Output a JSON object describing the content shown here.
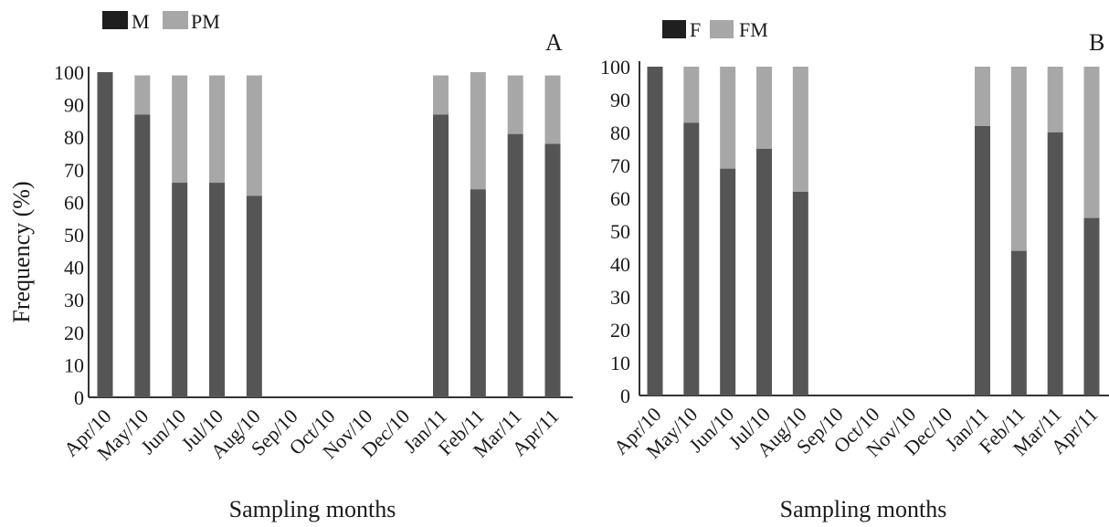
{
  "colors": {
    "primary": "#555555",
    "secondary": "#a7a7a8",
    "legend_dark": "#1f1f1f",
    "legend_light": "#a7a7a8",
    "axis": "#333333"
  },
  "chart_data": [
    {
      "type": "bar",
      "stacked": true,
      "panel": "A",
      "legend": [
        "M",
        "PM"
      ],
      "legend_placement": "top-left",
      "categories": [
        "Apr/10",
        "May/10",
        "Jun/10",
        "Jul/10",
        "Aug/10",
        "Sep/10",
        "Oct/10",
        "Nov/10",
        "Dec/10",
        "Jan/11",
        "Feb/11",
        "Mar/11",
        "Apr/11"
      ],
      "series": [
        {
          "name": "M",
          "values": [
            100,
            87,
            66,
            66,
            62,
            0,
            0,
            0,
            0,
            87,
            64,
            81,
            78
          ]
        },
        {
          "name": "PM",
          "values": [
            0,
            12,
            33,
            33,
            37,
            0,
            0,
            0,
            0,
            12,
            36,
            18,
            21
          ]
        }
      ],
      "ylabel": "Frequency (%)",
      "xlabel": "Sampling months",
      "yticks": [
        0,
        10,
        20,
        30,
        40,
        50,
        60,
        70,
        80,
        90,
        100
      ],
      "ylim": [
        0,
        100
      ],
      "grid": false
    },
    {
      "type": "bar",
      "stacked": true,
      "panel": "B",
      "legend": [
        "F",
        "FM"
      ],
      "legend_placement": "top-left",
      "categories": [
        "Apr/10",
        "May/10",
        "Jun/10",
        "Jul/10",
        "Aug/10",
        "Sep/10",
        "Oct/10",
        "Nov/10",
        "Dec/10",
        "Jan/11",
        "Feb/11",
        "Mar/11",
        "Apr/11"
      ],
      "series": [
        {
          "name": "F",
          "values": [
            100,
            83,
            69,
            75,
            62,
            0,
            0,
            0,
            0,
            82,
            44,
            80,
            54
          ]
        },
        {
          "name": "FM",
          "values": [
            0,
            17,
            31,
            25,
            38,
            0,
            0,
            0,
            0,
            18,
            56,
            20,
            46
          ]
        }
      ],
      "xlabel": "Sampling months",
      "yticks": [
        0,
        10,
        20,
        30,
        40,
        50,
        60,
        70,
        80,
        90,
        100
      ],
      "ylim": [
        0,
        100
      ],
      "grid": false
    }
  ]
}
